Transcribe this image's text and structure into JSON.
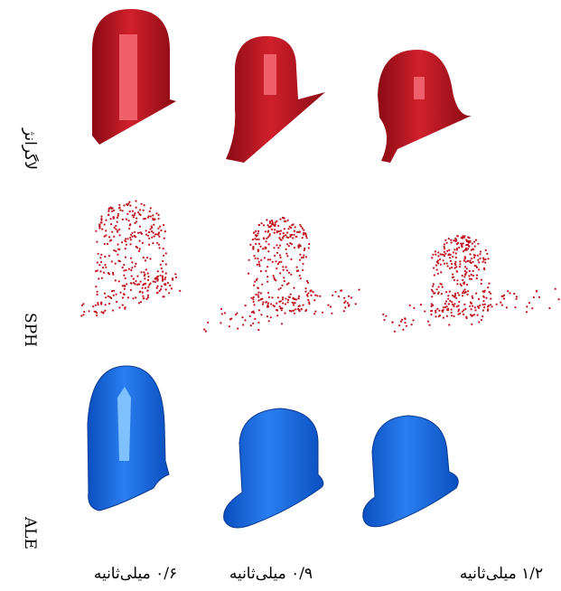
{
  "rows": [
    {
      "label": "لاگرانژ"
    },
    {
      "label": "SPH"
    },
    {
      "label": "ALE"
    }
  ],
  "columns": [
    {
      "label": "۰/۶ میلی‌ثانیه"
    },
    {
      "label": "۰/۹ میلی‌ثانیه"
    },
    {
      "label": "۱/۲ میلی‌ثانیه"
    }
  ]
}
